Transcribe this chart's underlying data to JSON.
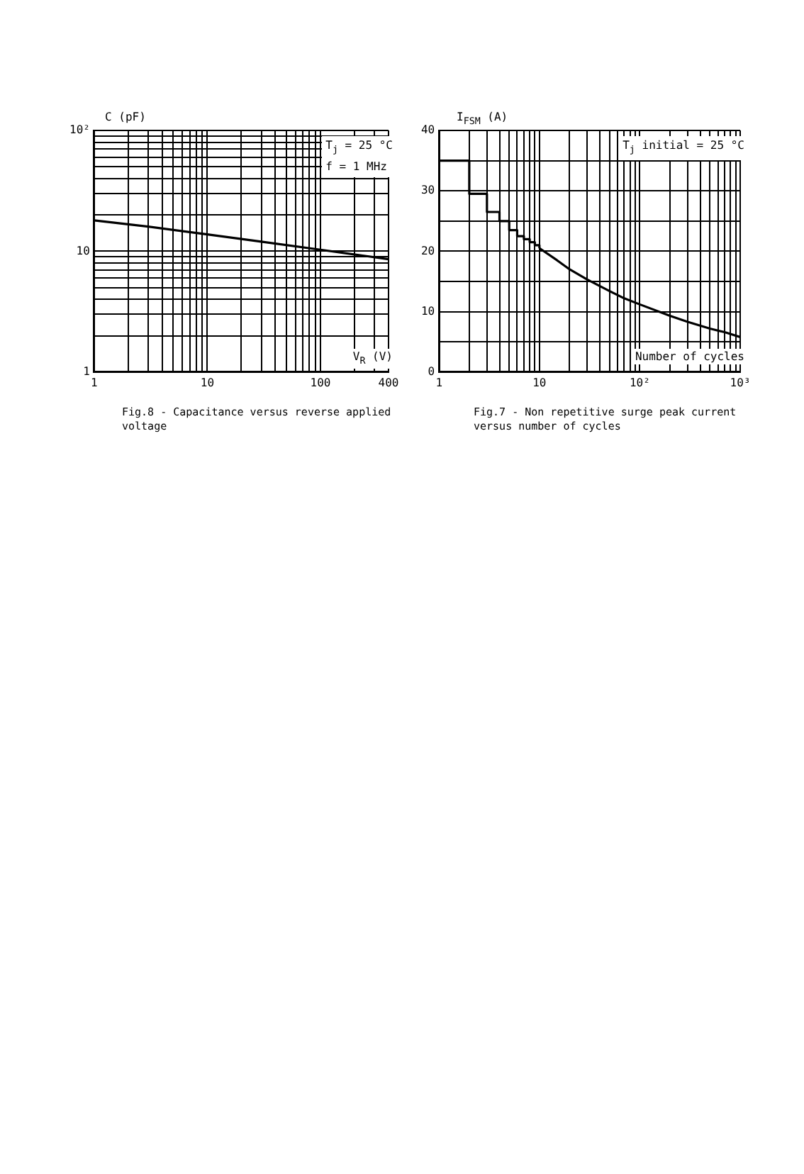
{
  "chart_data": [
    {
      "type": "line",
      "title": "Fig.8 - Capacitance versus reverse applied voltage",
      "xlabel": "V$_{R}$ (V)",
      "ylabel": "C (pF)",
      "log": "xy",
      "grid": true,
      "legend": false,
      "marker": "none",
      "line_style": "solid",
      "annotations": [
        "T$_{j}$ =  25 °C",
        "f = 1 MHz"
      ],
      "xlim": [
        1,
        400
      ],
      "xticks": [
        1,
        {
          "value": 2,
          "label": null
        },
        {
          "value": 3,
          "label": null
        },
        {
          "value": 4,
          "label": null
        },
        {
          "value": 5,
          "label": null
        },
        {
          "value": 6,
          "label": null
        },
        {
          "value": 7,
          "label": null
        },
        {
          "value": 8,
          "label": null
        },
        {
          "value": 9,
          "label": null
        },
        10,
        {
          "value": 20,
          "label": null
        },
        {
          "value": 30,
          "label": null
        },
        {
          "value": 40,
          "label": null
        },
        {
          "value": 50,
          "label": null
        },
        {
          "value": 60,
          "label": null
        },
        {
          "value": 70,
          "label": null
        },
        {
          "value": 80,
          "label": null
        },
        {
          "value": 90,
          "label": null
        },
        100,
        {
          "value": 200,
          "label": null
        },
        {
          "value": 300,
          "label": null
        },
        400
      ],
      "ylim": [
        1,
        100
      ],
      "yticks": [
        1,
        {
          "value": 2,
          "label": null
        },
        {
          "value": 3,
          "label": null
        },
        {
          "value": 4,
          "label": null
        },
        {
          "value": 5,
          "label": null
        },
        {
          "value": 6,
          "label": null
        },
        {
          "value": 7,
          "label": null
        },
        {
          "value": 8,
          "label": null
        },
        {
          "value": 9,
          "label": null
        },
        10,
        {
          "value": 20,
          "label": null
        },
        {
          "value": 30,
          "label": null
        },
        {
          "value": 40,
          "label": null
        },
        {
          "value": 50,
          "label": null
        },
        {
          "value": 60,
          "label": null
        },
        {
          "value": 70,
          "label": null
        },
        {
          "value": 80,
          "label": null
        },
        {
          "value": 90,
          "label": null
        },
        {
          "value": 100,
          "label": "10²"
        }
      ],
      "series": [
        {
          "type": "line",
          "color": "#000000",
          "x": [
            1,
            3,
            10,
            30,
            100,
            400
          ],
          "values": [
            18,
            16,
            13.8,
            12,
            10.3,
            8.6
          ]
        }
      ]
    },
    {
      "type": "line",
      "title": "Fig.7 - Non repetitive surge peak current versus number of cycles",
      "xlabel": "Number of cycles",
      "ylabel": "I$_{FSM}$ (A)",
      "log": "x",
      "grid": true,
      "legend": false,
      "marker": "none",
      "line_style": "solid",
      "annotations": [
        "T$_{j}$ initial = 25 °C"
      ],
      "xlim": [
        1,
        1000
      ],
      "xticks": [
        1,
        {
          "value": 2,
          "label": null
        },
        {
          "value": 3,
          "label": null
        },
        {
          "value": 4,
          "label": null
        },
        {
          "value": 5,
          "label": null
        },
        {
          "value": 6,
          "label": null
        },
        {
          "value": 7,
          "label": null
        },
        {
          "value": 8,
          "label": null
        },
        {
          "value": 9,
          "label": null
        },
        10,
        {
          "value": 20,
          "label": null
        },
        {
          "value": 30,
          "label": null
        },
        {
          "value": 40,
          "label": null
        },
        {
          "value": 50,
          "label": null
        },
        {
          "value": 60,
          "label": null
        },
        {
          "value": 70,
          "label": null
        },
        {
          "value": 80,
          "label": null
        },
        {
          "value": 90,
          "label": null
        },
        {
          "value": 100,
          "label": "10²"
        },
        {
          "value": 200,
          "label": null
        },
        {
          "value": 300,
          "label": null
        },
        {
          "value": 400,
          "label": null
        },
        {
          "value": 500,
          "label": null
        },
        {
          "value": 600,
          "label": null
        },
        {
          "value": 700,
          "label": null
        },
        {
          "value": 800,
          "label": null
        },
        {
          "value": 900,
          "label": null
        },
        {
          "value": 1000,
          "label": "10³"
        }
      ],
      "ylim": [
        0,
        40
      ],
      "yticks": [
        0,
        {
          "value": 5,
          "label": null
        },
        10,
        {
          "value": 15,
          "label": null
        },
        20,
        {
          "value": 25,
          "label": null
        },
        30,
        {
          "value": 35,
          "label": null
        },
        40
      ],
      "series": [
        {
          "type": "step",
          "color": "#000000",
          "x": [
            1,
            2,
            3,
            4,
            5,
            6,
            7,
            8,
            9,
            10
          ],
          "values": [
            35,
            29.5,
            26.5,
            25,
            23.5,
            22.5,
            22,
            21.5,
            21,
            20.5
          ]
        },
        {
          "type": "line",
          "color": "#000000",
          "x": [
            10,
            15,
            20,
            30,
            50,
            70,
            100,
            200,
            300,
            500,
            700,
            1000
          ],
          "values": [
            20.5,
            18.5,
            17,
            15.3,
            13.4,
            12.2,
            11.2,
            9.3,
            8.3,
            7.2,
            6.6,
            5.8
          ]
        }
      ]
    }
  ]
}
